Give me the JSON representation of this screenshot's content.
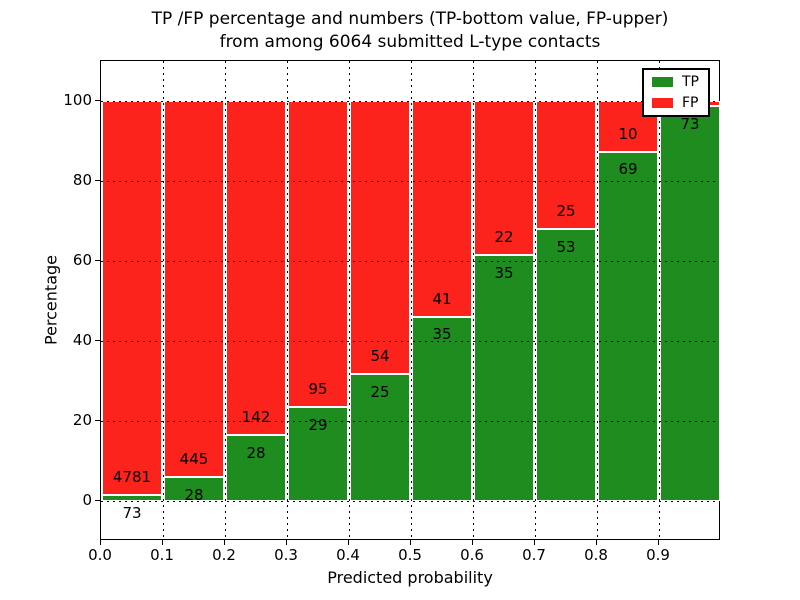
{
  "figure": {
    "title_line1": "TP /FP percentage and numbers (TP-bottom value, FP-upper)",
    "title_line2": "from among 6064 submitted L-type contacts",
    "xlabel": "Predicted probability",
    "ylabel": "Percentage"
  },
  "legend": {
    "items": [
      {
        "name": "tp",
        "label": "TP",
        "color": "#1f8c1f"
      },
      {
        "name": "fp",
        "label": "FP",
        "color": "#fb231c"
      }
    ]
  },
  "chart_data": {
    "type": "bar",
    "variant": "stacked-normalized-percent",
    "title": "TP /FP percentage and numbers (TP-bottom value, FP-upper) from among 6064 submitted L-type contacts",
    "xlabel": "Predicted probability",
    "ylabel": "Percentage",
    "total_contacts": 6064,
    "x_tick_labels": [
      "0.0",
      "0.1",
      "0.2",
      "0.3",
      "0.4",
      "0.5",
      "0.6",
      "0.7",
      "0.8",
      "0.9"
    ],
    "y_tick_labels": [
      "0",
      "20",
      "40",
      "60",
      "80",
      "100"
    ],
    "y_ticks": [
      0,
      20,
      40,
      60,
      80,
      100
    ],
    "ylim": [
      -10,
      110
    ],
    "xlim": [
      0.0,
      1.0
    ],
    "bar_width": 0.1,
    "grid": "dotted-black-above-bars",
    "legend_position": "upper-right",
    "colors": {
      "tp": "#1f8c1f",
      "fp": "#fb231c",
      "bar_edge": "#ffffff"
    },
    "series": [
      {
        "name": "TP",
        "counts": [
          73,
          28,
          28,
          29,
          25,
          35,
          35,
          53,
          69,
          73
        ]
      },
      {
        "name": "FP",
        "counts": [
          4781,
          445,
          142,
          95,
          54,
          41,
          22,
          25,
          10,
          1
        ]
      }
    ],
    "fp_label_visible": [
      true,
      true,
      true,
      true,
      true,
      true,
      true,
      true,
      true,
      false
    ],
    "tp_label_visible": [
      true,
      true,
      true,
      true,
      true,
      true,
      true,
      true,
      true,
      true
    ],
    "note_last_fp_label": "FP count label of the 0.9 bar is hidden behind the legend box"
  }
}
